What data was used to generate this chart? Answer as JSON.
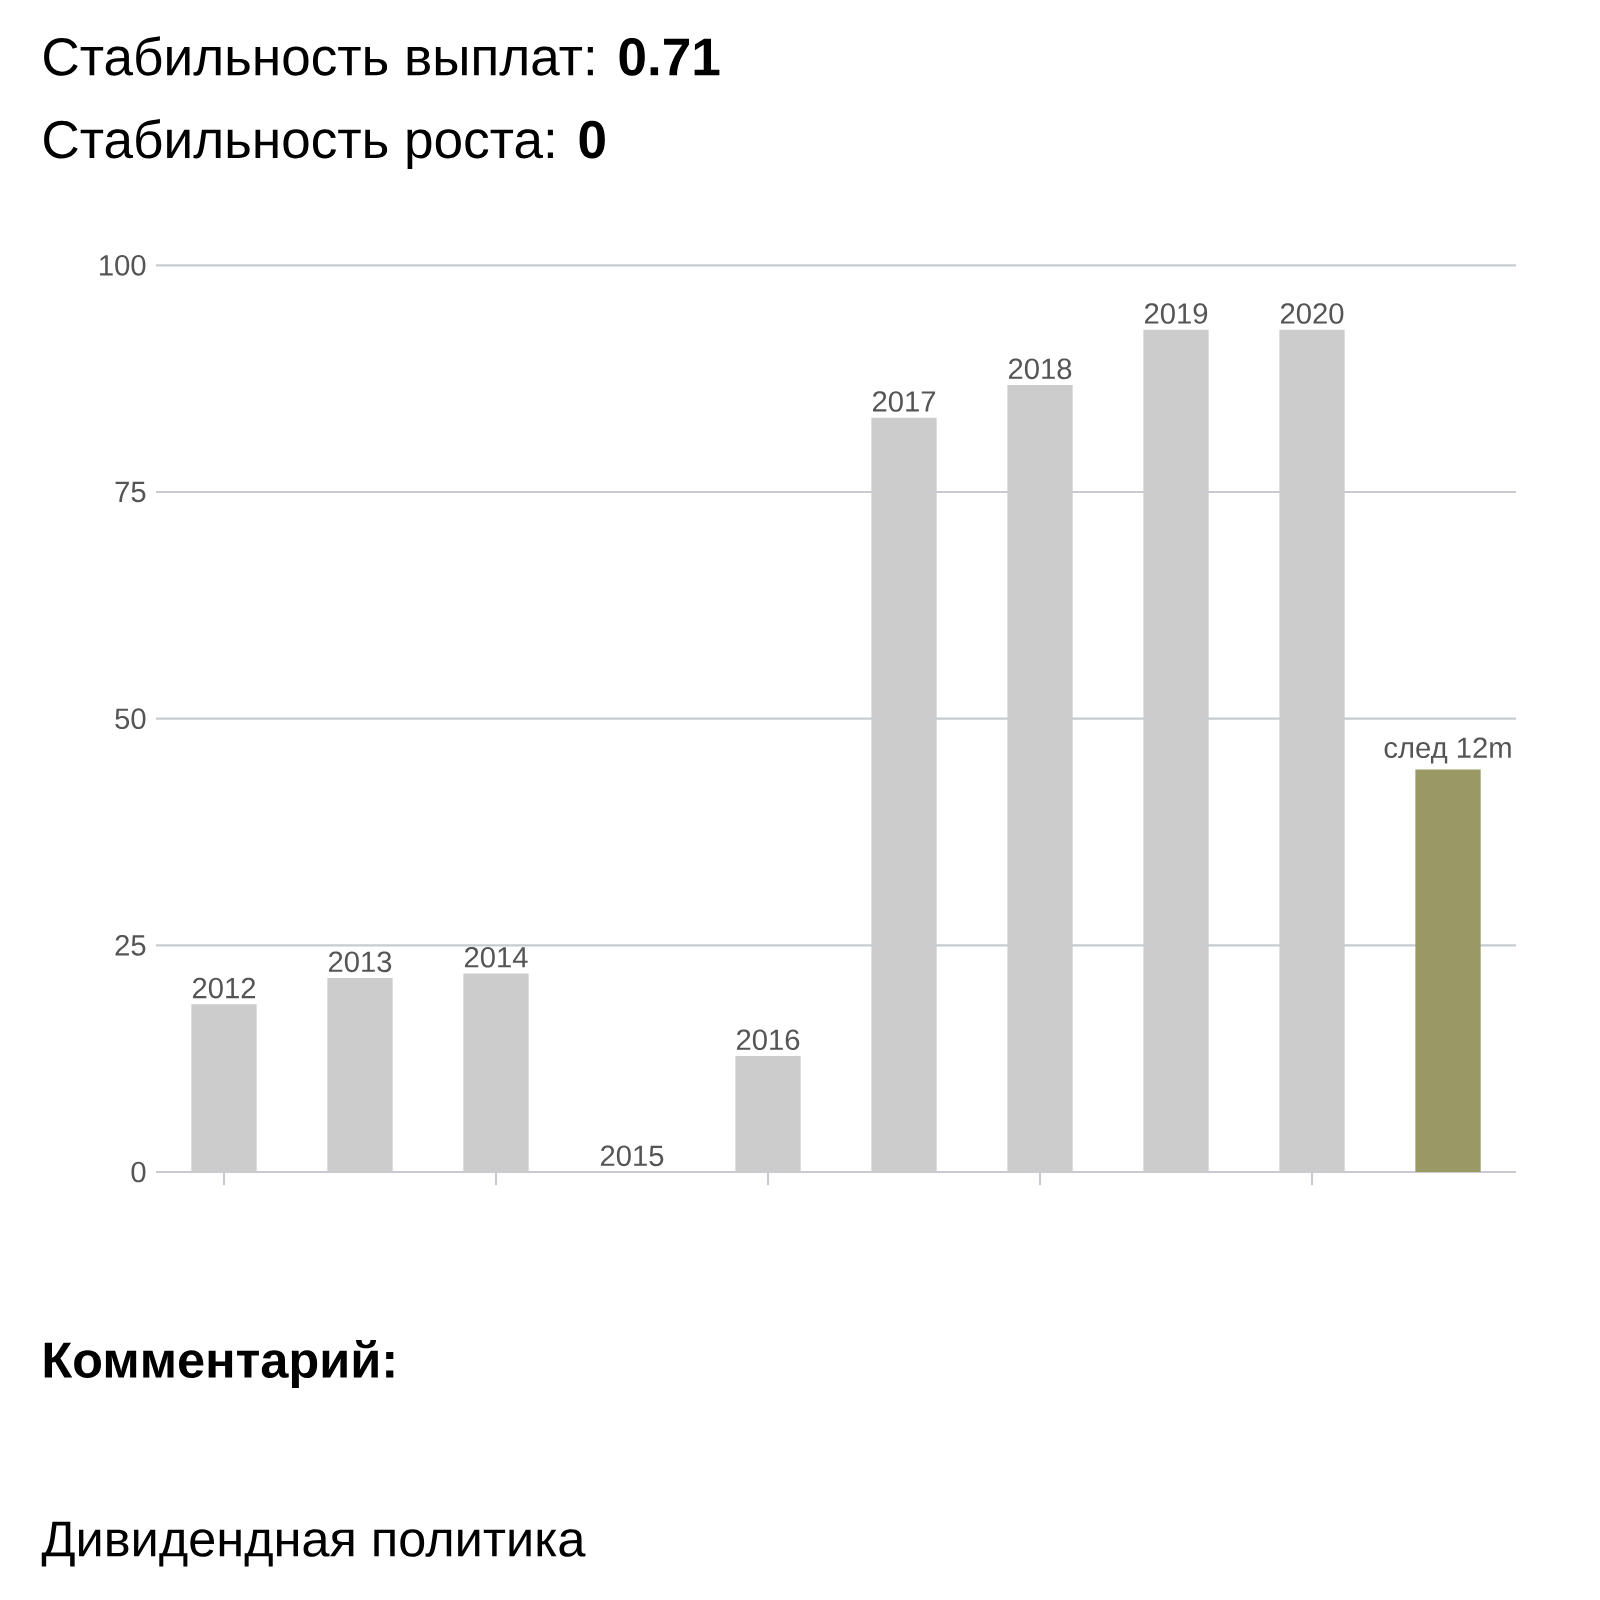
{
  "chart_data": {
    "type": "bar",
    "title": "Стабильность выплат: **0.71**",
    "subtitle": "Стабильность роста: **0**",
    "categories": [
      "2012",
      "2013",
      "2014",
      "2015",
      "2016",
      "2017",
      "2018",
      "2019",
      "2020",
      "след 12m"
    ],
    "values": [
      18.5,
      21.4,
      21.9,
      0,
      12.8,
      83.2,
      86.8,
      92.9,
      92.9,
      44.4
    ],
    "colors": [
      "#cccccc",
      "#cccccc",
      "#cccccc",
      "#cccccc",
      "#cccccc",
      "#cccccc",
      "#cccccc",
      "#cccccc",
      "#cccccc",
      "#999966"
    ],
    "ylim": [
      0,
      100
    ],
    "yticks": [
      0,
      25,
      50,
      75,
      100
    ],
    "grid": "y",
    "annotations": [
      "Комментарий:",
      "Дивидендная политика"
    ]
  }
}
